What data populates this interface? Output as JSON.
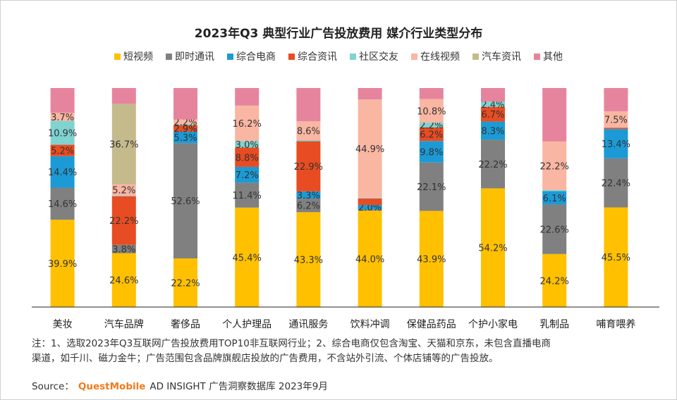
{
  "chart_data": {
    "type": "bar",
    "stacked": true,
    "title": "2023年Q3 典型行业广告投放费用 媒介行业类型分布",
    "categories": [
      "美妆",
      "汽车品牌",
      "奢侈品",
      "个人护理品",
      "通讯服务",
      "饮料冲调",
      "保健品药品",
      "个护小家电",
      "乳制品",
      "哺育喂养"
    ],
    "ylim": [
      0,
      100
    ],
    "grid": false,
    "legend_position": "top",
    "series": [
      {
        "name": "短视频",
        "color": "#FFC000",
        "values": [
          39.9,
          24.6,
          22.2,
          45.4,
          43.3,
          44.0,
          43.9,
          54.2,
          24.2,
          45.5
        ],
        "labels": [
          "39.9%",
          "24.6%",
          "22.2%",
          "45.4%",
          "43.3%",
          "44.0%",
          "43.9%",
          "54.2%",
          "24.2%",
          "45.5%"
        ]
      },
      {
        "name": "即时通讯",
        "color": "#808080",
        "values": [
          14.6,
          3.8,
          52.6,
          11.4,
          6.2,
          0.6,
          22.1,
          22.2,
          22.6,
          22.4
        ],
        "labels": [
          "14.6%",
          "3.8%",
          "52.6%",
          "11.4%",
          "6.2%",
          "",
          "22.1%",
          "22.2%",
          "22.6%",
          "22.4%"
        ]
      },
      {
        "name": "综合电商",
        "color": "#1C9AD6",
        "values": [
          14.4,
          0,
          5.3,
          7.2,
          3.3,
          2.0,
          9.8,
          8.3,
          6.1,
          13.4
        ],
        "labels": [
          "14.4%",
          "",
          "5.3%",
          "7.2%",
          "3.3%",
          "2.0%",
          "9.8%",
          "8.3%",
          "6.1%",
          "13.4%"
        ]
      },
      {
        "name": "综合资讯",
        "color": "#E84C22",
        "values": [
          5.2,
          22.2,
          2.9,
          8.8,
          22.9,
          3.0,
          6.2,
          6.7,
          0,
          0.6
        ],
        "labels": [
          "5.2%",
          "22.2%",
          "2.9%",
          "8.8%",
          "22.9%",
          "",
          "6.2%",
          "6.7%",
          "",
          ""
        ]
      },
      {
        "name": "社区交友",
        "color": "#7FD3D0",
        "values": [
          10.9,
          0.3,
          0.5,
          3.0,
          0.5,
          0.3,
          2.2,
          2.4,
          0.5,
          0
        ],
        "labels": [
          "10.9%",
          "",
          "",
          "3.0%",
          "",
          "",
          "2.2%",
          "2.4%",
          "",
          ""
        ]
      },
      {
        "name": "在线视频",
        "color": "#F9B6A2",
        "values": [
          3.7,
          5.2,
          2.2,
          16.2,
          8.6,
          44.9,
          10.8,
          0,
          22.2,
          7.5
        ],
        "labels": [
          "3.7%",
          "5.2%",
          "2.2%",
          "16.2%",
          "8.6%",
          "44.9%",
          "10.8%",
          "",
          "22.2%",
          "7.5%"
        ]
      },
      {
        "name": "汽车资讯",
        "color": "#C5BA8C",
        "values": [
          0,
          36.7,
          0,
          0,
          0,
          0,
          0,
          0,
          0,
          0
        ],
        "labels": [
          "",
          "36.7%",
          "",
          "",
          "",
          "",
          "",
          "",
          "",
          ""
        ]
      },
      {
        "name": "其他",
        "color": "#E6849E",
        "values": [
          11.3,
          7.2,
          14.3,
          8.0,
          15.2,
          5.2,
          5.0,
          6.2,
          24.4,
          10.6
        ],
        "labels": [
          "",
          "",
          "",
          "",
          "",
          "",
          "",
          "",
          "",
          ""
        ]
      }
    ]
  },
  "note": {
    "line1": "注：1、选取2023年Q3互联网广告投放费用TOP10非互联网行业；2、综合电商仅包含淘宝、天猫和京东，未包含直播电商",
    "line2": "渠道，如千川、磁力金牛；广告范围包含品牌旗舰店投放的广告费用，不含站外引流、个体店铺等的广告投放。"
  },
  "source": {
    "label": "Source：",
    "brand": "QuestMobile",
    "text": "AD INSIGHT 广告洞察数据库 2023年9月"
  }
}
